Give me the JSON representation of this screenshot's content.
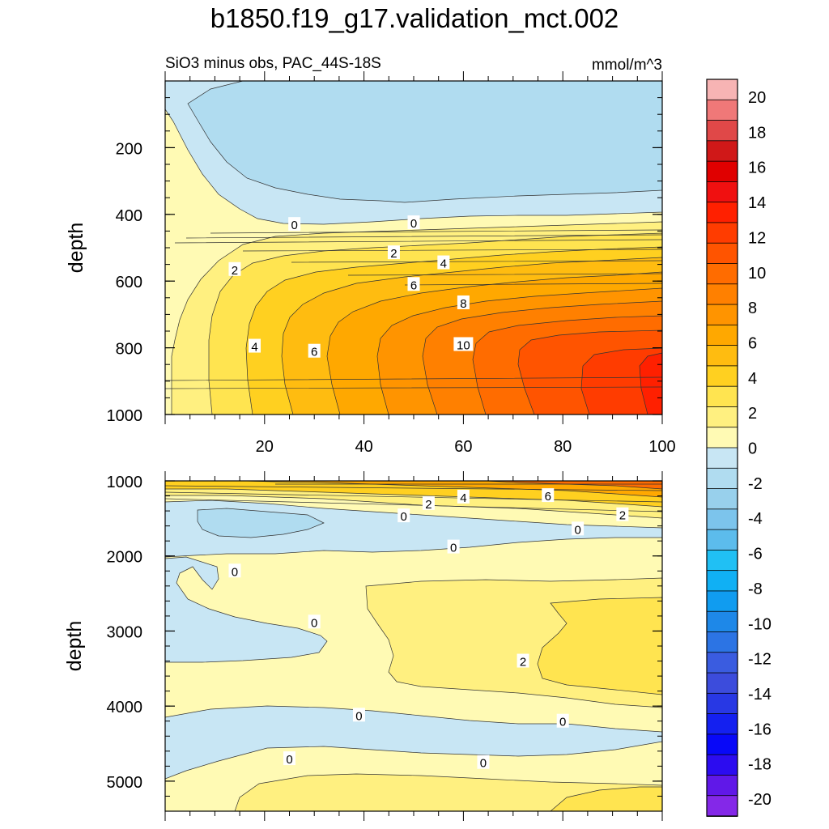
{
  "title": "b1850.f19_g17.validation_mct.002",
  "subtitle_left": "SiO3 minus obs, PAC_44S-18S",
  "subtitle_right": "mmol/m^3",
  "colorbar": {
    "labels": [
      "20",
      "18",
      "16",
      "14",
      "12",
      "10",
      "8",
      "6",
      "4",
      "2",
      "0",
      "-2",
      "-4",
      "-6",
      "-8",
      "-10",
      "-12",
      "-14",
      "-16",
      "-18",
      "-20"
    ],
    "colors": [
      "#f7b4b4",
      "#f07878",
      "#e04848",
      "#d01818",
      "#e00000",
      "#f01010",
      "#ff2000",
      "#ff3c00",
      "#ff5400",
      "#ff6c00",
      "#ff8000",
      "#ff9400",
      "#ffa800",
      "#ffbc10",
      "#ffd020",
      "#ffe450",
      "#fff080",
      "#fffab4",
      "#c8e6f4",
      "#b0dcf0",
      "#98d0ec",
      "#7cc4ec",
      "#5cbcec",
      "#20c0f4",
      "#10b0f4",
      "#109cf0",
      "#1e88e8",
      "#2c74e4",
      "#3a5ce0",
      "#3c4cdc",
      "#2838e4",
      "#1420f0",
      "#0808f8",
      "#2c0cf0",
      "#6018e8",
      "#8428e8"
    ]
  },
  "chart_data": [
    {
      "type": "contour",
      "panel": "upper",
      "ylabel": "depth",
      "xlabel": "",
      "xlim": [
        0,
        100
      ],
      "ylim": [
        1000,
        0
      ],
      "xticks": [
        "20",
        "40",
        "60",
        "80",
        "100"
      ],
      "yticks": [
        "200",
        "400",
        "600",
        "800",
        "1000"
      ],
      "contour_labels": [
        {
          "text": "0",
          "x": 26,
          "y": 430
        },
        {
          "text": "0",
          "x": 50,
          "y": 425
        },
        {
          "text": "2",
          "x": 14,
          "y": 565
        },
        {
          "text": "2",
          "x": 46,
          "y": 515
        },
        {
          "text": "4",
          "x": 56,
          "y": 545
        },
        {
          "text": "4",
          "x": 18,
          "y": 795
        },
        {
          "text": "6",
          "x": 50,
          "y": 610
        },
        {
          "text": "6",
          "x": 30,
          "y": 810
        },
        {
          "text": "8",
          "x": 60,
          "y": 665
        },
        {
          "text": "10",
          "x": 60,
          "y": 790
        }
      ]
    },
    {
      "type": "contour",
      "panel": "lower",
      "ylabel": "depth",
      "xlabel": "",
      "xlim": [
        0,
        100
      ],
      "ylim": [
        5400,
        1000
      ],
      "xticks": [],
      "yticks": [
        "1000",
        "2000",
        "3000",
        "4000",
        "5000"
      ],
      "contour_labels": [
        {
          "text": "2",
          "x": 53,
          "y": 1300
        },
        {
          "text": "4",
          "x": 60,
          "y": 1215
        },
        {
          "text": "6",
          "x": 77,
          "y": 1195
        },
        {
          "text": "2",
          "x": 92,
          "y": 1450
        },
        {
          "text": "0",
          "x": 48,
          "y": 1465
        },
        {
          "text": "0",
          "x": 83,
          "y": 1640
        },
        {
          "text": "0",
          "x": 58,
          "y": 1880
        },
        {
          "text": "0",
          "x": 14,
          "y": 2200
        },
        {
          "text": "0",
          "x": 30,
          "y": 2880
        },
        {
          "text": "2",
          "x": 72,
          "y": 3400
        },
        {
          "text": "0",
          "x": 39,
          "y": 4120
        },
        {
          "text": "0",
          "x": 80,
          "y": 4200
        },
        {
          "text": "0",
          "x": 25,
          "y": 4700
        },
        {
          "text": "0",
          "x": 64,
          "y": 4750
        }
      ]
    }
  ]
}
